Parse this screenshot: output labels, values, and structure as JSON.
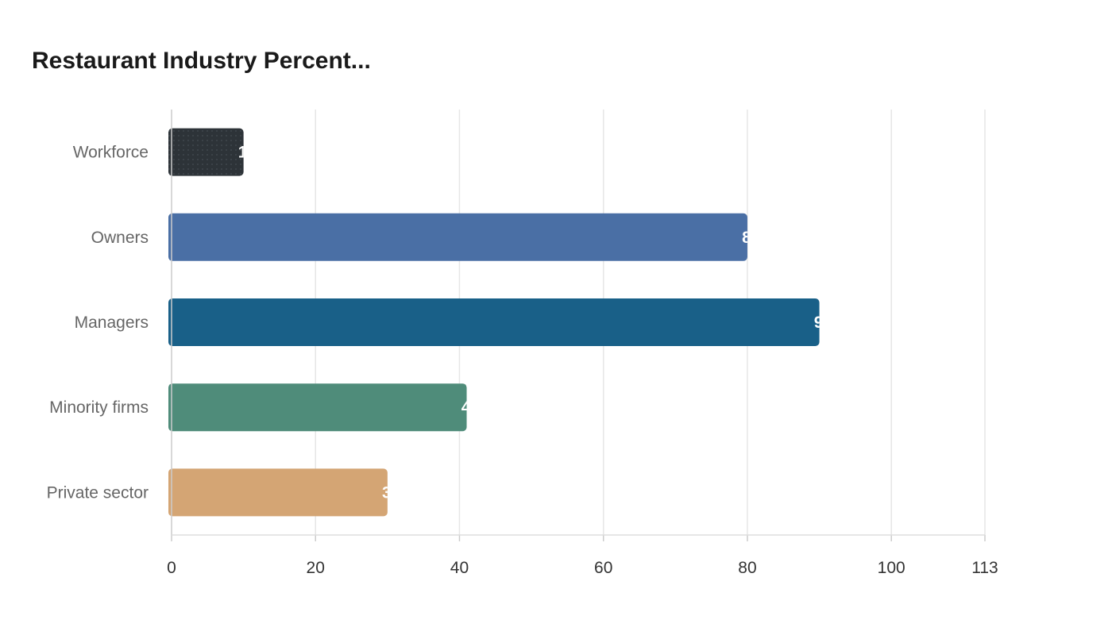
{
  "title": "Restaurant Industry Percent...",
  "chart_data": {
    "type": "bar",
    "orientation": "horizontal",
    "title": "Restaurant Industry Percent...",
    "categories": [
      "Workforce",
      "Owners",
      "Managers",
      "Minority firms",
      "Private sector"
    ],
    "values": [
      10,
      80,
      90,
      41,
      30
    ],
    "value_labels": [
      "1",
      "8",
      "9",
      "4",
      "3"
    ],
    "colors": [
      "#2d3338",
      "#4a6fa5",
      "#196088",
      "#4f8c7a",
      "#d4a574"
    ],
    "patterned": [
      true,
      false,
      false,
      false,
      false
    ],
    "xlim": [
      0,
      113
    ],
    "xticks": [
      0,
      20,
      40,
      60,
      80,
      100,
      113
    ],
    "xlabel": "",
    "ylabel": "",
    "grid": true,
    "legend": "none"
  }
}
